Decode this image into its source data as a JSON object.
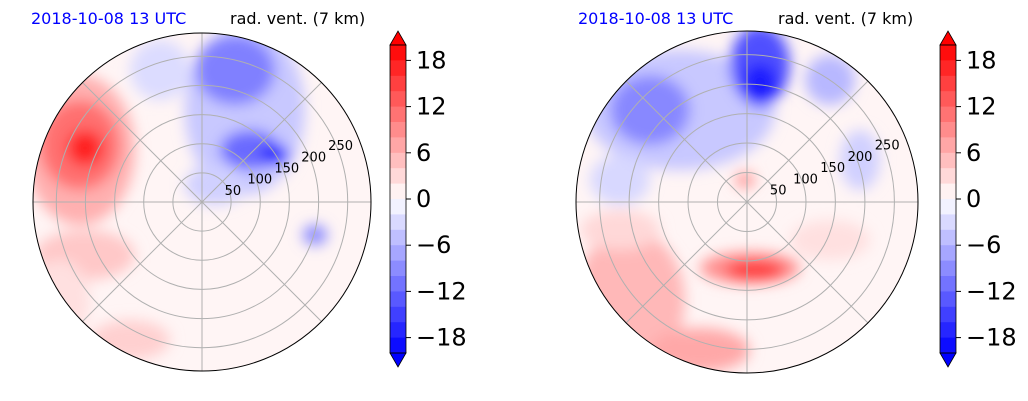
{
  "chart_data": [
    {
      "type": "heatmap",
      "title_left": "2018-10-08 13 UTC",
      "title_right": "rad. vent. (7 km)",
      "radial_ticks": [
        "50",
        "100",
        "150",
        "200",
        "250"
      ],
      "colorbar": {
        "ticks": [
          18,
          12,
          6,
          0,
          -6,
          -12,
          -18
        ],
        "labels": [
          "18",
          "12",
          "6",
          "0",
          "−6",
          "−12",
          "−18"
        ],
        "range": [
          -20,
          20
        ],
        "extend": "both",
        "colormap": "bwr",
        "colors": {
          "negative": "#0000ff",
          "zero": "#ffffff",
          "positive": "#ff0000"
        }
      },
      "grid": true,
      "features": [
        {
          "region": "north-east",
          "sign": "negative",
          "magnitude": 18
        },
        {
          "region": "north",
          "sign": "negative",
          "magnitude": 10
        },
        {
          "region": "west",
          "sign": "positive",
          "magnitude": 18
        },
        {
          "region": "south-west",
          "sign": "positive",
          "magnitude": 6
        },
        {
          "region": "north-west",
          "sign": "negative",
          "magnitude": 4
        },
        {
          "region": "south-east",
          "sign": "negative",
          "magnitude": 2
        }
      ]
    },
    {
      "type": "heatmap",
      "title_left": "2018-10-08 13 UTC",
      "title_right": "rad. vent. (7 km)",
      "radial_ticks": [
        "50",
        "100",
        "150",
        "200",
        "250"
      ],
      "colorbar": {
        "ticks": [
          18,
          12,
          6,
          0,
          -6,
          -12,
          -18
        ],
        "labels": [
          "18",
          "12",
          "6",
          "0",
          "−6",
          "−12",
          "−18"
        ],
        "range": [
          -20,
          20
        ],
        "extend": "both",
        "colormap": "bwr",
        "colors": {
          "negative": "#0000ff",
          "zero": "#ffffff",
          "positive": "#ff0000"
        }
      },
      "grid": true,
      "features": [
        {
          "region": "north",
          "sign": "negative",
          "magnitude": 18
        },
        {
          "region": "north-west",
          "sign": "negative",
          "magnitude": 12
        },
        {
          "region": "north-east",
          "sign": "negative",
          "magnitude": 6
        },
        {
          "region": "south",
          "sign": "positive",
          "magnitude": 16
        },
        {
          "region": "south-west",
          "sign": "positive",
          "magnitude": 10
        },
        {
          "region": "west",
          "sign": "positive",
          "magnitude": 4
        }
      ]
    }
  ]
}
